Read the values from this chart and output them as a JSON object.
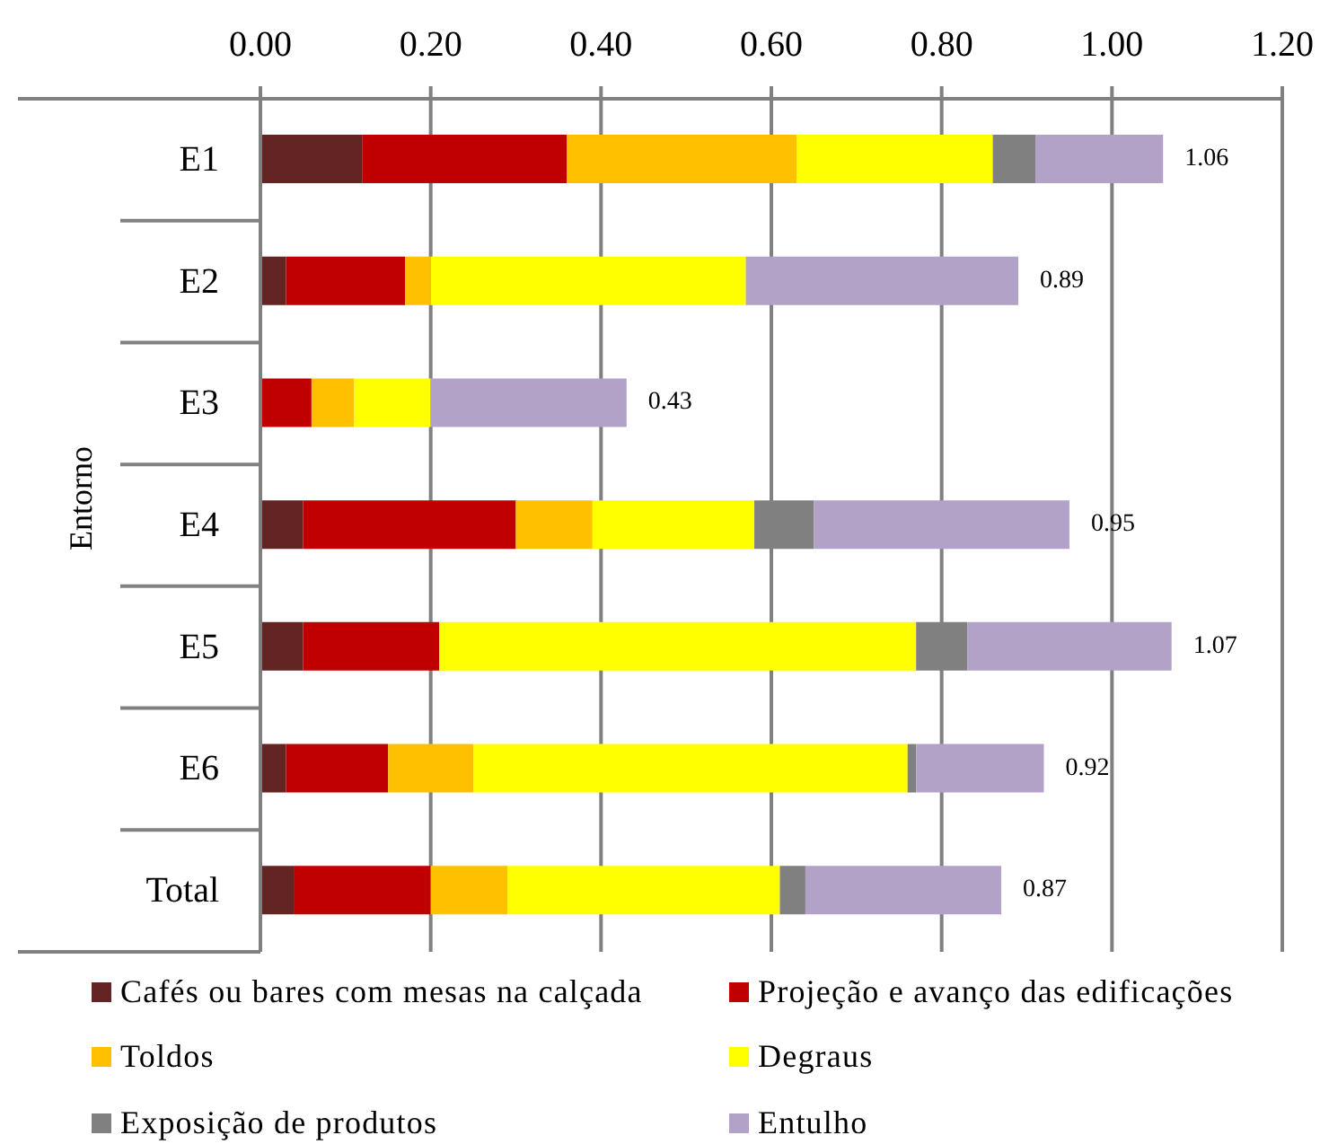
{
  "chart_data": {
    "type": "bar",
    "orientation": "horizontal",
    "stacked": true,
    "categories": [
      "E1",
      "E2",
      "E3",
      "E4",
      "E5",
      "E6",
      "Total"
    ],
    "series": [
      {
        "name": "Cafés ou bares com mesas na calçada",
        "color": "#632523",
        "values": [
          0.12,
          0.03,
          0,
          0.05,
          0.05,
          0.03,
          0.04
        ]
      },
      {
        "name": "Projeção e avanço das edificações",
        "color": "#c00000",
        "values": [
          0.24,
          0.14,
          0.06,
          0.25,
          0.16,
          0.12,
          0.16
        ]
      },
      {
        "name": "Toldos",
        "color": "#ffc000",
        "values": [
          0.27,
          0.03,
          0.05,
          0.09,
          0,
          0.1,
          0.09
        ]
      },
      {
        "name": "Degraus",
        "color": "#ffff00",
        "values": [
          0.23,
          0.37,
          0.09,
          0.19,
          0.56,
          0.51,
          0.32
        ]
      },
      {
        "name": "Exposição de produtos",
        "color": "#808080",
        "values": [
          0.05,
          0,
          0,
          0.07,
          0.06,
          0.01,
          0.03
        ]
      },
      {
        "name": "Entulho",
        "color": "#b2a2c7",
        "values": [
          0.15,
          0.32,
          0.23,
          0.3,
          0.24,
          0.15,
          0.23
        ]
      }
    ],
    "xlim": [
      0,
      1.2
    ],
    "xticks": [
      {
        "value": 0,
        "label": "0.00"
      },
      {
        "value": 0.2,
        "label": "0.20"
      },
      {
        "value": 0.4,
        "label": "0.40"
      },
      {
        "value": 0.6,
        "label": "0.60"
      },
      {
        "value": 0.8,
        "label": "0.80"
      },
      {
        "value": 1,
        "label": "1.00"
      },
      {
        "value": 1.2,
        "label": "1.20"
      }
    ],
    "ylabel": "Entorno",
    "grid": "x",
    "legend": "bottom",
    "totals": [
      "1.06",
      "0.89",
      "0.43",
      "0.95",
      "1.07",
      "0.92",
      "0.87"
    ]
  }
}
